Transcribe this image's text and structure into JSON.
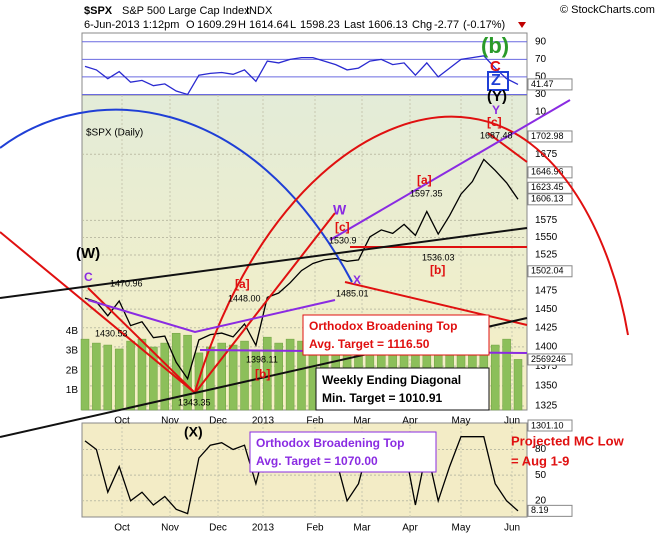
{
  "header": {
    "symbol": "$SPX",
    "name": "S&P 500 Large Cap Index",
    "exchange": "INDX",
    "source": "© StockCharts.com",
    "date": "6-Jun-2013 1:12pm",
    "open_label": "O",
    "open": 1609.29,
    "high_label": "H",
    "high": 1614.64,
    "low_label": "L",
    "low": 1598.23,
    "last_label": "Last",
    "last": 1606.13,
    "chg_label": "Chg",
    "chg": -2.77,
    "chg_pct": "(-0.17%)"
  },
  "annotations": [
    "(b)",
    "C",
    "Z",
    "(Y)",
    "Y",
    "[c]",
    "1687.48",
    "[a]",
    "1597.35",
    "W",
    "[c]",
    "1530.9",
    "X",
    "1485.01",
    "1536.03",
    "[b]",
    "(W)",
    "C",
    "1470.96",
    "1430.53",
    "[a]",
    "1448.00",
    "1398.11",
    "[b]",
    "1343.35",
    "(X)"
  ],
  "boxes": [
    {
      "title": "Orthodox Broadening Top",
      "target": "Avg. Target = 1116.50"
    },
    {
      "title": "Weekly Ending Diagonal",
      "target": "Min. Target = 1010.91"
    },
    {
      "title": "Orthodox Broadening Top",
      "target": "Avg. Target = 1070.00"
    },
    {
      "title": "Projected MC Low",
      "target": "= Aug 1-9"
    }
  ],
  "chart_data": [
    {
      "type": "line",
      "ylim": [
        26,
        100
      ],
      "yticks": [
        10,
        30,
        50,
        70,
        90
      ],
      "series": [
        {
          "color": "#2a2ad0",
          "values": [
            62,
            58,
            48,
            56,
            44,
            46,
            40,
            42,
            34,
            30,
            52,
            54,
            55,
            53,
            58,
            45,
            68,
            66,
            70,
            72,
            72,
            68,
            64,
            58,
            60,
            68,
            70,
            64,
            66,
            52,
            66,
            50,
            60,
            70,
            72,
            74,
            60,
            48,
            41.47
          ]
        }
      ],
      "tags": [
        {
          "value": 41.47,
          "label": "41.47"
        }
      ]
    },
    {
      "type": "line",
      "title": "$SPX (Daily)",
      "log": true,
      "ylim": [
        1320,
        1770
      ],
      "yticks": [
        1325,
        1350,
        1375,
        1400,
        1425,
        1450,
        1475,
        1525,
        1550,
        1575,
        1675
      ],
      "y2lim": [
        0,
        16
      ],
      "y2ticks": [
        {
          "value": 1,
          "label": "1B"
        },
        {
          "value": 2,
          "label": "2B"
        },
        {
          "value": 3,
          "label": "3B"
        },
        {
          "value": 4,
          "label": "4B"
        }
      ],
      "x_labels": [
        "Oct",
        "Nov",
        "Dec",
        "2013",
        "Feb",
        "Mar",
        "Apr",
        "May",
        "Jun"
      ],
      "series": [
        {
          "type": "bar",
          "axis": "y2",
          "color": "#8cbf5a",
          "values": [
            3.6,
            3.4,
            3.3,
            3.1,
            3.5,
            3.6,
            3.2,
            3.4,
            3.9,
            3.8,
            2.9,
            3.2,
            3.4,
            3.3,
            3.5,
            3.0,
            3.7,
            3.4,
            3.6,
            3.5,
            3.5,
            3.3,
            3.1,
            3.4,
            3.3,
            3.2,
            3.3,
            3.0,
            3.1,
            3.3,
            3.2,
            3.5,
            3.3,
            3.4,
            3.2,
            3.4,
            3.3,
            3.6,
            2.569246
          ]
        },
        {
          "type": "line",
          "color": "#000000",
          "values": [
            1465,
            1460,
            1441,
            1461,
            1428,
            1433,
            1412,
            1414,
            1380,
            1359,
            1409,
            1416,
            1418,
            1413,
            1430,
            1402,
            1466,
            1472,
            1486,
            1503,
            1513,
            1518,
            1520,
            1516,
            1518,
            1551,
            1561,
            1556,
            1569,
            1553,
            1588,
            1555,
            1582,
            1614,
            1633,
            1667,
            1650,
            1631,
            1606.13
          ]
        }
      ],
      "tags": [
        {
          "value": 1702.98,
          "label": "1702.98"
        },
        {
          "value": 1646.96,
          "label": "1646.96"
        },
        {
          "value": 1623.45,
          "label": "1623.45"
        },
        {
          "value": 1606.13,
          "label": "1606.13"
        },
        {
          "value": 1502.04,
          "label": "1502.04"
        },
        {
          "value": 2.569246,
          "label": "2569246",
          "axis": "y2"
        }
      ]
    },
    {
      "type": "line",
      "ylim": [
        1,
        111
      ],
      "yticks": [
        20,
        50,
        80
      ],
      "x_labels": [
        "Oct",
        "Nov",
        "Dec",
        "2013",
        "Feb",
        "Mar",
        "Apr",
        "May",
        "Jun"
      ],
      "top_tag": "1301.10",
      "series": [
        {
          "color": "#000000",
          "values": [
            90,
            80,
            30,
            60,
            20,
            30,
            15,
            25,
            10,
            5,
            70,
            85,
            88,
            80,
            85,
            40,
            92,
            90,
            95,
            95,
            95,
            85,
            70,
            20,
            40,
            90,
            95,
            70,
            85,
            15,
            80,
            20,
            60,
            95,
            95,
            95,
            40,
            20,
            8.19
          ]
        }
      ],
      "tags": [
        {
          "value": 8.19,
          "label": "8.19"
        }
      ]
    }
  ]
}
